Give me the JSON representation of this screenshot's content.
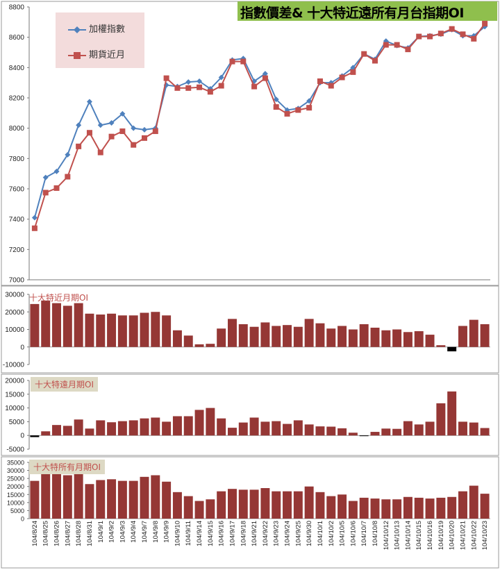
{
  "title": "指數價差& 十大特近遠所有月台指期OI",
  "colors": {
    "index_line": "#4f81bd",
    "futures_line": "#c0504d",
    "bar": "#953735",
    "bar_negative": "#000000",
    "title_bg": "#8fbf4d",
    "legend_bg": "#f3dcdc",
    "label_bg": "#ddd9c4"
  },
  "chart_data": [
    {
      "type": "line",
      "ylim": [
        7000,
        8800
      ],
      "yticks": [
        "7000",
        "7200",
        "7400",
        "7600",
        "7800",
        "8000",
        "8200",
        "8400",
        "8600",
        "8800"
      ],
      "legend_position": "top-left",
      "series": [
        {
          "name": "加權指數",
          "marker": "diamond",
          "values": [
            7410,
            7675,
            7715,
            7825,
            8020,
            8175,
            8020,
            8035,
            8095,
            8000,
            7990,
            8000,
            8285,
            8275,
            8305,
            8310,
            8260,
            8335,
            8450,
            8460,
            8310,
            8360,
            8190,
            8120,
            8130,
            8180,
            8300,
            8300,
            8345,
            8400,
            8490,
            8455,
            8575,
            8545,
            8530,
            8605,
            8610,
            8620,
            8650,
            8610,
            8610,
            8670
          ]
        },
        {
          "name": "期貨近月",
          "marker": "square",
          "values": [
            7340,
            7575,
            7605,
            7680,
            7880,
            7970,
            7840,
            7945,
            7980,
            7890,
            7935,
            7980,
            8330,
            8265,
            8265,
            8270,
            8240,
            8280,
            8440,
            8440,
            8275,
            8330,
            8140,
            8095,
            8120,
            8135,
            8310,
            8280,
            8335,
            8370,
            8490,
            8445,
            8550,
            8550,
            8520,
            8605,
            8605,
            8625,
            8655,
            8620,
            8590,
            8690
          ]
        }
      ]
    },
    {
      "type": "bar",
      "label": "十大特近月期OI",
      "ylim": [
        -10000,
        30000
      ],
      "yticks": [
        "-10000",
        "0",
        "10000",
        "20000",
        "30000"
      ],
      "values": [
        24500,
        26500,
        25000,
        23500,
        25000,
        19000,
        18500,
        19000,
        18000,
        18000,
        19500,
        20000,
        18000,
        9500,
        6500,
        1500,
        1800,
        10500,
        16000,
        13000,
        11500,
        14000,
        12000,
        12500,
        11500,
        16000,
        13500,
        10500,
        12000,
        10000,
        13000,
        11000,
        9500,
        10000,
        8500,
        9000,
        7000,
        1000,
        -2500,
        12000,
        15500,
        13000
      ]
    },
    {
      "type": "bar",
      "label": "十大特遠月期OI",
      "ylim": [
        -5000,
        20000
      ],
      "yticks": [
        "-5000",
        "0",
        "5000",
        "10000",
        "15000",
        "20000"
      ],
      "values": [
        -600,
        1500,
        3800,
        3500,
        5800,
        2500,
        5500,
        4800,
        5200,
        5500,
        6200,
        6500,
        5000,
        7000,
        7000,
        9300,
        10000,
        6200,
        2800,
        4700,
        6500,
        5000,
        5200,
        4200,
        5500,
        4000,
        3300,
        3200,
        2600,
        1000,
        -100,
        1300,
        2500,
        2400,
        5200,
        4000,
        5000,
        11700,
        16000,
        5000,
        4700,
        2700
      ]
    },
    {
      "type": "bar",
      "label": "十大特所有月期OI",
      "ylim": [
        0,
        35000
      ],
      "yticks": [
        "0",
        "5000",
        "10000",
        "15000",
        "20000",
        "25000",
        "30000",
        "35000"
      ],
      "values": [
        23500,
        28000,
        29000,
        27000,
        31000,
        21500,
        24000,
        24500,
        23500,
        23500,
        26000,
        27000,
        23000,
        16500,
        14000,
        11000,
        12000,
        17000,
        18500,
        18000,
        18000,
        19000,
        17000,
        17000,
        17000,
        20000,
        16500,
        14000,
        15000,
        11000,
        13000,
        12500,
        12000,
        12000,
        13500,
        13000,
        12500,
        13000,
        13500,
        17000,
        20500,
        15500
      ]
    }
  ],
  "categories": [
    "104/8/24",
    "104/8/25",
    "104/8/26",
    "104/8/27",
    "104/8/28",
    "104/8/31",
    "104/9/1",
    "104/9/2",
    "104/9/3",
    "104/9/4",
    "104/9/7",
    "104/9/8",
    "104/9/9",
    "104/9/10",
    "104/9/11",
    "104/9/14",
    "104/9/15",
    "104/9/16",
    "104/9/17",
    "104/9/18",
    "104/9/21",
    "104/9/22",
    "104/9/23",
    "104/9/24",
    "104/9/25",
    "104/9/30",
    "104/10/1",
    "104/10/2",
    "104/10/5",
    "104/10/6",
    "104/10/7",
    "104/10/8",
    "104/10/12",
    "104/10/13",
    "104/10/14",
    "104/10/15",
    "104/10/16",
    "104/10/19",
    "104/10/20",
    "104/10/21",
    "104/10/22",
    "104/10/23"
  ]
}
